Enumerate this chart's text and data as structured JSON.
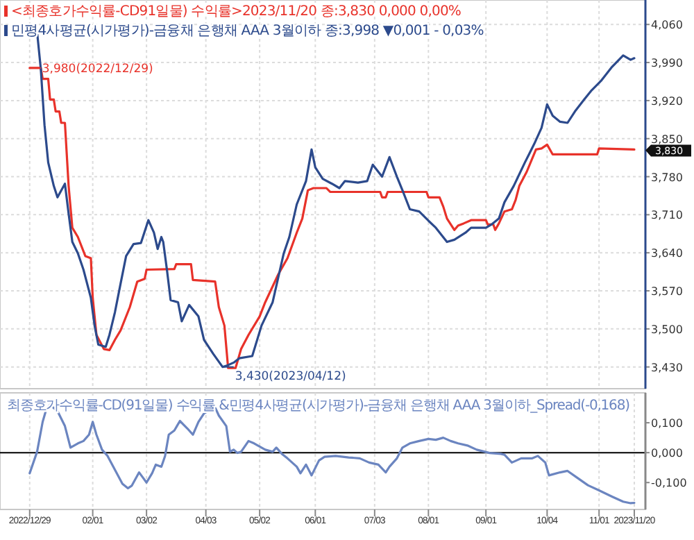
{
  "chart_data": [
    {
      "type": "line",
      "legend": "top left",
      "grid": true,
      "tick_labels": "y",
      "marker": "none",
      "line_style": "solid",
      "xlim": [
        "2022-12-13",
        "2023-11-26"
      ],
      "xticks": [
        {
          "value": "2022-12-29",
          "label": null
        },
        {
          "value": "2023-02-01",
          "label": null
        },
        {
          "value": "2023-03-02",
          "label": null
        },
        {
          "value": "2023-04-03",
          "label": null
        },
        {
          "value": "2023-05-02",
          "label": null
        },
        {
          "value": "2023-06-01",
          "label": null
        },
        {
          "value": "2023-07-03",
          "label": null
        },
        {
          "value": "2023-08-01",
          "label": null
        },
        {
          "value": "2023-09-01",
          "label": null
        },
        {
          "value": "2023-10-04",
          "label": null
        },
        {
          "value": "2023-11-01",
          "label": null
        }
      ],
      "ylim": [
        3.39,
        4.105
      ],
      "yticks": [
        {
          "value": 3.43,
          "label": "3,430"
        },
        {
          "value": 3.5,
          "label": "3,500"
        },
        {
          "value": 3.57,
          "label": "3,570"
        },
        {
          "value": 3.64,
          "label": "3,640"
        },
        {
          "value": 3.71,
          "label": "3,710"
        },
        {
          "value": 3.78,
          "label": "3,780"
        },
        {
          "value": 3.85,
          "label": "3,850"
        },
        {
          "value": 3.92,
          "label": "3,920"
        },
        {
          "value": 3.99,
          "label": "3,990"
        },
        {
          "value": 4.06,
          "label": "4,060"
        }
      ],
      "annotations": [
        {
          "text": "3,980(2022/12/29)",
          "x": "2022-12-29",
          "y": 3.98
        },
        {
          "text": "3,430(2023/04/12)",
          "x": "2023-04-12",
          "y": 3.43
        },
        {
          "text": "3,830",
          "x": "2023-11-20",
          "y": 3.83
        }
      ],
      "series": [
        {
          "name": "<최종호가수익률-CD91일물) 수익률>2023/11/20 종:3,830  0,000 0,00%",
          "color": "#e8322a",
          "x": [
            "2022-12-29",
            "2023-01-04",
            "2023-01-05",
            "2023-01-08",
            "2023-01-09",
            "2023-01-11",
            "2023-01-12",
            "2023-01-14",
            "2023-01-15",
            "2023-01-17",
            "2023-01-19",
            "2023-01-21",
            "2023-01-24",
            "2023-01-28",
            "2023-01-31",
            "2023-02-01",
            "2023-02-03",
            "2023-02-07",
            "2023-02-10",
            "2023-02-13",
            "2023-02-16",
            "2023-02-21",
            "2023-02-25",
            "2023-03-01",
            "2023-03-02",
            "2023-03-17",
            "2023-03-18",
            "2023-03-26",
            "2023-03-27",
            "2023-04-08",
            "2023-04-10",
            "2023-04-13",
            "2023-04-15",
            "2023-04-19",
            "2023-04-22",
            "2023-04-26",
            "2023-05-02",
            "2023-05-05",
            "2023-05-12",
            "2023-05-17",
            "2023-05-22",
            "2023-05-25",
            "2023-05-28",
            "2023-05-31",
            "2023-06-07",
            "2023-06-09",
            "2023-07-06",
            "2023-07-07",
            "2023-07-09",
            "2023-07-10",
            "2023-07-31",
            "2023-08-01",
            "2023-08-07",
            "2023-08-09",
            "2023-08-11",
            "2023-08-15",
            "2023-08-17",
            "2023-08-20",
            "2023-08-24",
            "2023-09-01",
            "2023-09-02",
            "2023-09-05",
            "2023-09-06",
            "2023-09-08",
            "2023-09-11",
            "2023-09-15",
            "2023-09-17",
            "2023-09-19",
            "2023-09-23",
            "2023-09-28",
            "2023-10-01",
            "2023-10-04",
            "2023-10-07",
            "2023-10-31",
            "2023-11-01",
            "2023-11-20"
          ],
          "values": [
            3.98,
            3.98,
            3.96,
            3.96,
            3.922,
            3.922,
            3.9,
            3.9,
            3.879,
            3.879,
            3.763,
            3.686,
            3.669,
            3.634,
            3.63,
            3.557,
            3.489,
            3.463,
            3.461,
            3.48,
            3.497,
            3.54,
            3.587,
            3.592,
            3.609,
            3.61,
            3.619,
            3.619,
            3.59,
            3.587,
            3.54,
            3.506,
            3.428,
            3.428,
            3.463,
            3.489,
            3.523,
            3.549,
            3.6,
            3.63,
            3.677,
            3.703,
            3.755,
            3.759,
            3.759,
            3.752,
            3.752,
            3.742,
            3.742,
            3.752,
            3.752,
            3.742,
            3.742,
            3.725,
            3.703,
            3.682,
            3.69,
            3.694,
            3.7,
            3.7,
            3.692,
            3.692,
            3.682,
            3.694,
            3.716,
            3.72,
            3.737,
            3.763,
            3.789,
            3.83,
            3.832,
            3.839,
            3.821,
            3.821,
            3.832,
            3.83
          ]
        },
        {
          "name": "민평4사평균(시가평가)-금융채 은행채 AAA 3월이하 종:3,998 ▼0,001 - 0,03%",
          "color": "#2c4a8c",
          "x": [
            "2022-12-29",
            "2023-01-02",
            "2023-01-04",
            "2023-01-06",
            "2023-01-08",
            "2023-01-11",
            "2023-01-13",
            "2023-01-17",
            "2023-01-19",
            "2023-01-21",
            "2023-01-24",
            "2023-01-27",
            "2023-01-31",
            "2023-02-02",
            "2023-02-04",
            "2023-02-08",
            "2023-02-10",
            "2023-02-13",
            "2023-02-16",
            "2023-02-19",
            "2023-02-23",
            "2023-02-27",
            "2023-03-03",
            "2023-03-06",
            "2023-03-08",
            "2023-03-10",
            "2023-03-11",
            "2023-03-13",
            "2023-03-15",
            "2023-03-19",
            "2023-03-21",
            "2023-03-25",
            "2023-03-30",
            "2023-04-02",
            "2023-04-07",
            "2023-04-12",
            "2023-04-14",
            "2023-04-18",
            "2023-04-21",
            "2023-04-28",
            "2023-05-03",
            "2023-05-09",
            "2023-05-15",
            "2023-05-18",
            "2023-05-22",
            "2023-05-27",
            "2023-05-30",
            "2023-06-01",
            "2023-06-05",
            "2023-06-10",
            "2023-06-14",
            "2023-06-17",
            "2023-06-24",
            "2023-06-29",
            "2023-07-02",
            "2023-07-07",
            "2023-07-11",
            "2023-07-15",
            "2023-07-18",
            "2023-07-22",
            "2023-07-27",
            "2023-08-01",
            "2023-08-05",
            "2023-08-11",
            "2023-08-15",
            "2023-08-21",
            "2023-08-24",
            "2023-09-01",
            "2023-09-04",
            "2023-09-08",
            "2023-09-11",
            "2023-09-16",
            "2023-09-22",
            "2023-09-27",
            "2023-10-01",
            "2023-10-04",
            "2023-10-07",
            "2023-10-11",
            "2023-10-15",
            "2023-10-19",
            "2023-10-24",
            "2023-10-28",
            "2023-11-02",
            "2023-11-08",
            "2023-11-14",
            "2023-11-18",
            "2023-11-20"
          ],
          "values": [
            4.05,
            4.046,
            3.978,
            3.875,
            3.806,
            3.763,
            3.742,
            3.767,
            3.712,
            3.66,
            3.639,
            3.609,
            3.557,
            3.506,
            3.471,
            3.467,
            3.489,
            3.531,
            3.583,
            3.634,
            3.656,
            3.658,
            3.7,
            3.677,
            3.647,
            3.669,
            3.66,
            3.609,
            3.553,
            3.549,
            3.514,
            3.544,
            3.523,
            3.48,
            3.454,
            3.43,
            3.432,
            3.438,
            3.446,
            3.45,
            3.506,
            3.549,
            3.639,
            3.669,
            3.729,
            3.772,
            3.83,
            3.797,
            3.776,
            3.767,
            3.759,
            3.772,
            3.769,
            3.772,
            3.802,
            3.78,
            3.816,
            3.78,
            3.755,
            3.72,
            3.716,
            3.699,
            3.686,
            3.66,
            3.664,
            3.677,
            3.686,
            3.686,
            3.692,
            3.703,
            3.733,
            3.763,
            3.806,
            3.84,
            3.87,
            3.913,
            3.892,
            3.881,
            3.879,
            3.9,
            3.922,
            3.939,
            3.956,
            3.982,
            4.003,
            3.995,
            3.998
          ]
        }
      ]
    },
    {
      "type": "line",
      "title": "최종호가수익률-CD(91일물) 수익률 &민평4사평균(시가평가)-금융채 은행채 AAA 3월이하_Spread(-0,168)",
      "grid": "x",
      "marker": "none",
      "line_style": "solid",
      "xlim": [
        "2022-12-13",
        "2023-11-26"
      ],
      "xticks": [
        {
          "value": "2022-12-29",
          "label": "2022/12/29"
        },
        {
          "value": "2023-02-01",
          "label": "02/01"
        },
        {
          "value": "2023-03-02",
          "label": "03/02"
        },
        {
          "value": "2023-04-03",
          "label": "04/03"
        },
        {
          "value": "2023-05-02",
          "label": "05/02"
        },
        {
          "value": "2023-06-01",
          "label": "06/01"
        },
        {
          "value": "2023-07-03",
          "label": "07/03"
        },
        {
          "value": "2023-08-01",
          "label": "08/01"
        },
        {
          "value": "2023-09-01",
          "label": "09/01"
        },
        {
          "value": "2023-10-04",
          "label": "10/04"
        },
        {
          "value": "2023-11-01",
          "label": "11/01"
        },
        {
          "value": "2023-11-20",
          "label": "2023/11/20"
        }
      ],
      "ylim": [
        -0.19,
        0.2
      ],
      "yticks": [
        {
          "value": -0.1,
          "label": "-0,100"
        },
        {
          "value": 0,
          "label": "0,000"
        },
        {
          "value": 0.1,
          "label": "0,100"
        }
      ],
      "ref_lines": [
        {
          "axis": "y",
          "value": 0,
          "color": "#000000"
        }
      ],
      "series": [
        {
          "color": "#6b85c0",
          "x": [
            "2022-12-29",
            "2023-01-02",
            "2023-01-05",
            "2023-01-07",
            "2023-01-09",
            "2023-01-13",
            "2023-01-17",
            "2023-01-20",
            "2023-01-24",
            "2023-01-27",
            "2023-01-30",
            "2023-02-01",
            "2023-02-03",
            "2023-02-06",
            "2023-02-09",
            "2023-02-14",
            "2023-02-17",
            "2023-02-20",
            "2023-02-22",
            "2023-02-26",
            "2023-02-28",
            "2023-03-02",
            "2023-03-05",
            "2023-03-07",
            "2023-03-10",
            "2023-03-12",
            "2023-03-14",
            "2023-03-17",
            "2023-03-20",
            "2023-03-24",
            "2023-03-27",
            "2023-03-30",
            "2023-04-02",
            "2023-04-06",
            "2023-04-08",
            "2023-04-10",
            "2023-04-14",
            "2023-04-16",
            "2023-04-18",
            "2023-04-20",
            "2023-04-22",
            "2023-04-26",
            "2023-04-29",
            "2023-05-03",
            "2023-05-05",
            "2023-05-09",
            "2023-05-11",
            "2023-05-14",
            "2023-05-17",
            "2023-05-22",
            "2023-05-24",
            "2023-05-27",
            "2023-05-30",
            "2023-06-03",
            "2023-06-06",
            "2023-06-12",
            "2023-06-19",
            "2023-06-25",
            "2023-06-30",
            "2023-07-05",
            "2023-07-09",
            "2023-07-11",
            "2023-07-15",
            "2023-07-18",
            "2023-07-22",
            "2023-07-27",
            "2023-08-01",
            "2023-08-05",
            "2023-08-09",
            "2023-08-13",
            "2023-08-17",
            "2023-08-22",
            "2023-08-27",
            "2023-09-03",
            "2023-09-09",
            "2023-09-11",
            "2023-09-15",
            "2023-09-20",
            "2023-09-26",
            "2023-09-29",
            "2023-10-03",
            "2023-10-05",
            "2023-10-11",
            "2023-10-15",
            "2023-10-20",
            "2023-10-26",
            "2023-11-01",
            "2023-11-08",
            "2023-11-14",
            "2023-11-18",
            "2023-11-20"
          ],
          "values": [
            -0.069,
            0.003,
            0.103,
            0.146,
            0.16,
            0.139,
            0.089,
            0.017,
            0.031,
            0.039,
            0.06,
            0.103,
            0.06,
            0.01,
            -0.011,
            -0.069,
            -0.104,
            -0.119,
            -0.111,
            -0.066,
            -0.083,
            -0.1,
            -0.069,
            -0.04,
            -0.047,
            -0.011,
            0.06,
            0.074,
            0.106,
            0.081,
            0.06,
            0.103,
            0.131,
            0.146,
            0.151,
            0.124,
            0.089,
            0.003,
            0.01,
            -0.001,
            0.003,
            0.039,
            0.031,
            0.017,
            0.01,
            0.003,
            0.017,
            -0.004,
            -0.019,
            -0.047,
            -0.069,
            -0.04,
            -0.076,
            -0.026,
            -0.014,
            -0.011,
            -0.016,
            -0.019,
            -0.033,
            -0.04,
            -0.066,
            -0.047,
            -0.019,
            0.017,
            0.031,
            0.039,
            0.046,
            0.043,
            0.05,
            0.039,
            0.031,
            0.024,
            0.01,
            -0.001,
            -0.004,
            -0.007,
            -0.033,
            -0.019,
            -0.019,
            -0.011,
            -0.033,
            -0.076,
            -0.066,
            -0.061,
            -0.083,
            -0.109,
            -0.126,
            -0.147,
            -0.164,
            -0.169,
            -0.168
          ]
        }
      ]
    }
  ]
}
